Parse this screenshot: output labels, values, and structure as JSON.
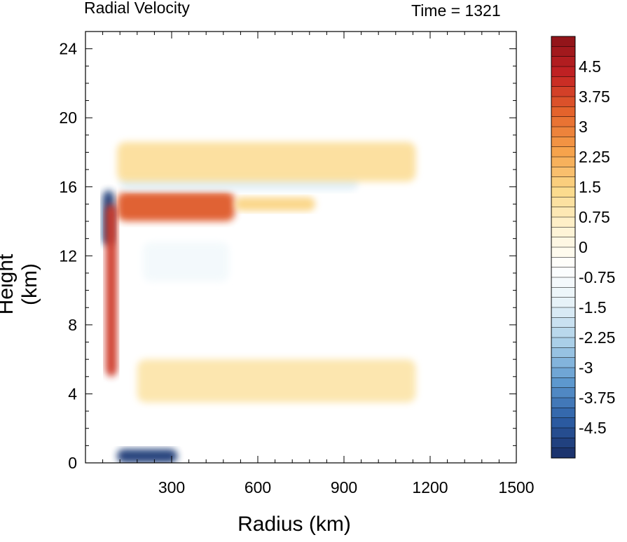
{
  "chart_data": {
    "type": "heatmap",
    "title_left": "Radial Velocity",
    "title_right": "Time = 1321",
    "xlabel": "Radius (km)",
    "ylabel": "Height (km)",
    "xlim": [
      0,
      1500
    ],
    "ylim": [
      0,
      25
    ],
    "x_ticks": [
      300,
      600,
      900,
      1200,
      1500
    ],
    "y_ticks": [
      0,
      4,
      8,
      12,
      16,
      20,
      24
    ],
    "colorbar": {
      "range": [
        -5.25,
        5.25
      ],
      "step": 0.25,
      "tick_labels": [
        "4.5",
        "3.75",
        "3",
        "2.25",
        "1.5",
        "0.75",
        "0",
        "-0.75",
        "-1.5",
        "-2.25",
        "-3",
        "-3.75",
        "-4.5"
      ],
      "tick_values": [
        4.5,
        3.75,
        3,
        2.25,
        1.5,
        0.75,
        0,
        -0.75,
        -1.5,
        -2.25,
        -3,
        -3.75,
        -4.5
      ],
      "colors": [
        "#1a2e66",
        "#2c5ea5",
        "#5f9ad0",
        "#a9cfe8",
        "#e4f1f8",
        "#ffffff",
        "#fef3d2",
        "#fbd98a",
        "#f6a24b",
        "#e5652c",
        "#c42224",
        "#8c1318"
      ]
    },
    "features": [
      {
        "desc": "upper outflow",
        "r": [
          110,
          520
        ],
        "z": [
          14,
          15.7
        ],
        "value": 3.5
      },
      {
        "desc": "upper outflow extension",
        "r": [
          520,
          800
        ],
        "z": [
          14.6,
          15.4
        ],
        "value": 1.5
      },
      {
        "desc": "upper inflow band",
        "r": [
          120,
          950
        ],
        "z": [
          15.8,
          16.7
        ],
        "value": -1.5
      },
      {
        "desc": "top outflow band",
        "r": [
          110,
          1150
        ],
        "z": [
          16.3,
          18.6
        ],
        "value": 1.2
      },
      {
        "desc": "eyewall inflow core",
        "r": [
          60,
          100
        ],
        "z": [
          12.6,
          15.8
        ],
        "value": -5.0
      },
      {
        "desc": "eyewall outflow column",
        "r": [
          70,
          110
        ],
        "z": [
          5,
          15
        ],
        "value": 4.0
      },
      {
        "desc": "boundary-layer inflow",
        "r": [
          110,
          320
        ],
        "z": [
          0,
          0.8
        ],
        "value": -5.0
      },
      {
        "desc": "low-level outflow",
        "r": [
          180,
          1150
        ],
        "z": [
          3.5,
          6
        ],
        "value": 1.0
      },
      {
        "desc": "mid-level inflow",
        "r": [
          200,
          500
        ],
        "z": [
          10.5,
          12.8
        ],
        "value": -0.9
      }
    ]
  }
}
